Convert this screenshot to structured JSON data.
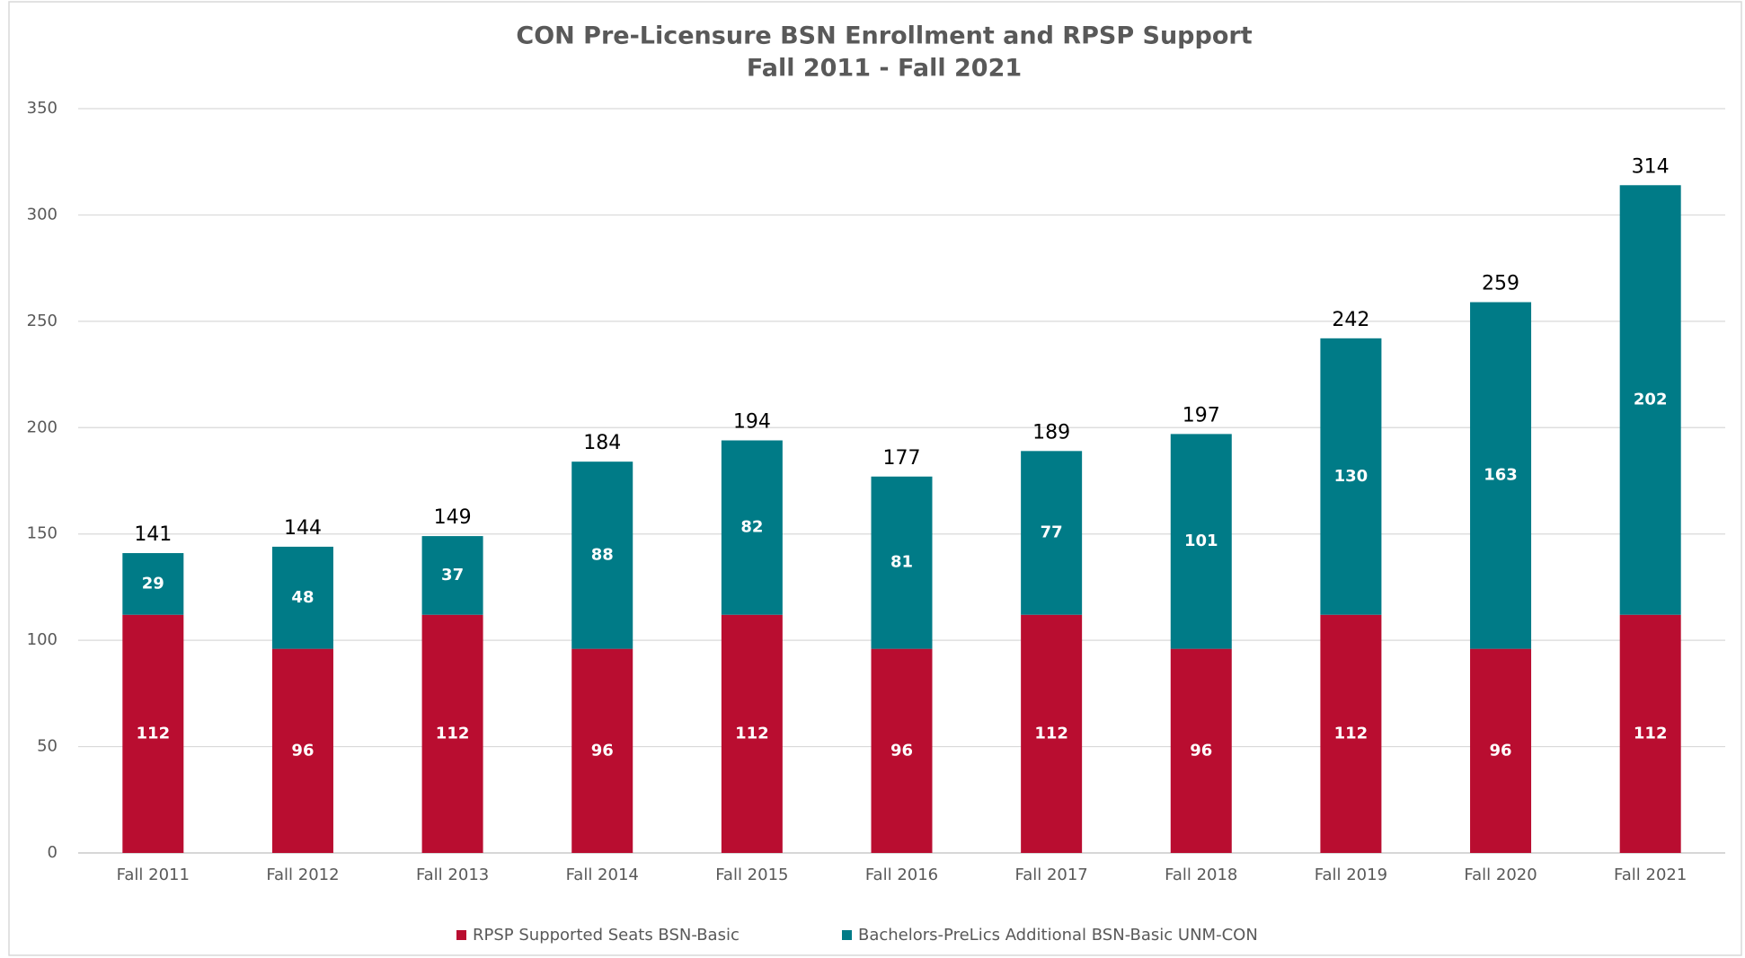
{
  "chart_data": {
    "type": "stacked_bar",
    "title": "CON Pre-Licensure BSN Enrollment and RPSP Support",
    "subtitle": "Fall 2011 - Fall 2021",
    "categories": [
      "Fall 2011",
      "Fall 2012",
      "Fall 2013",
      "Fall 2014",
      "Fall 2015",
      "Fall 2016",
      "Fall 2017",
      "Fall 2018",
      "Fall 2019",
      "Fall 2020",
      "Fall 2021"
    ],
    "series": [
      {
        "name": "RPSP Supported Seats BSN-Basic",
        "color": "#b90d30",
        "values": [
          112,
          96,
          112,
          96,
          112,
          96,
          112,
          96,
          112,
          96,
          112
        ]
      },
      {
        "name": "Bachelors-PreLics Additional BSN-Basic UNM-CON",
        "color": "#007b87",
        "values": [
          29,
          48,
          37,
          88,
          82,
          81,
          77,
          101,
          130,
          163,
          202
        ]
      }
    ],
    "total_labels": [
      141,
      144,
      149,
      184,
      194,
      177,
      189,
      197,
      242,
      259,
      314
    ],
    "ylim": [
      0,
      350
    ],
    "yticks": [
      0,
      50,
      100,
      150,
      200,
      250,
      300,
      350
    ],
    "grid": true
  }
}
